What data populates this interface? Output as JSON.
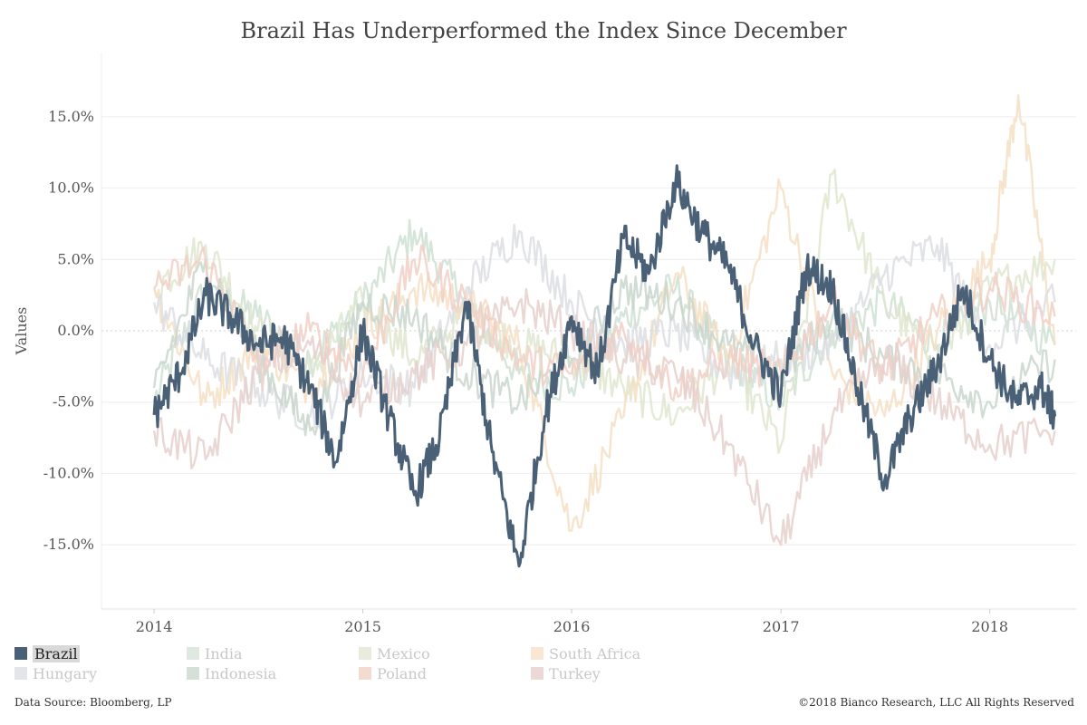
{
  "chart_data": {
    "type": "line",
    "title": "Brazil Has Underperformed the Index Since December",
    "ylabel": "Values",
    "xlabel": "",
    "x_ticks": [
      "2014",
      "2015",
      "2016",
      "2017",
      "2018"
    ],
    "y_ticks": [
      "15.0%",
      "10.0%",
      "5.0%",
      "0.0%",
      "-5.0%",
      "-10.0%",
      "-15.0%"
    ],
    "x_range": [
      "2013-10-01",
      "2018-06-01"
    ],
    "ylim": [
      -19.5,
      19.5
    ],
    "grid": true,
    "legend_position": "bottom-left",
    "highlighted_series": "Brazil",
    "series": [
      {
        "name": "Brazil",
        "color": "#4a6077",
        "x": [
          "2014-01-01",
          "2014-02-15",
          "2014-04-01",
          "2014-05-15",
          "2014-07-01",
          "2014-08-15",
          "2014-10-01",
          "2014-11-15",
          "2015-01-01",
          "2015-02-15",
          "2015-04-01",
          "2015-05-15",
          "2015-07-01",
          "2015-08-15",
          "2015-10-01",
          "2015-11-15",
          "2016-01-01",
          "2016-02-15",
          "2016-04-01",
          "2016-05-15",
          "2016-07-01",
          "2016-08-15",
          "2016-10-01",
          "2016-11-15",
          "2017-01-01",
          "2017-02-15",
          "2017-04-01",
          "2017-05-15",
          "2017-07-01",
          "2017-08-15",
          "2017-10-01",
          "2017-11-15",
          "2018-01-01",
          "2018-02-15",
          "2018-04-01",
          "2018-04-25"
        ],
        "values": [
          -5.9,
          -3.0,
          2.5,
          1.0,
          -1.0,
          -0.5,
          -4.0,
          -9.2,
          0.0,
          -6.0,
          -11.5,
          -7.5,
          2.0,
          -8.5,
          -16.5,
          -6.0,
          1.0,
          -3.0,
          6.5,
          4.0,
          10.5,
          7.0,
          4.5,
          -1.0,
          -4.5,
          4.5,
          3.0,
          -4.0,
          -10.5,
          -6.0,
          -2.5,
          3.0,
          -2.0,
          -5.0,
          -4.0,
          -6.0
        ]
      },
      {
        "name": "India",
        "color": "#cfe0d2",
        "x": [
          "2014-01-01",
          "2014-04-01",
          "2014-07-01",
          "2014-10-01",
          "2015-01-01",
          "2015-04-01",
          "2015-07-01",
          "2015-10-01",
          "2016-01-01",
          "2016-04-01",
          "2016-07-01",
          "2016-10-01",
          "2017-01-01",
          "2017-04-01",
          "2017-07-01",
          "2017-10-01",
          "2018-01-01",
          "2018-04-25"
        ],
        "values": [
          -5.0,
          3.0,
          1.0,
          -2.0,
          2.0,
          7.0,
          2.0,
          -3.0,
          -4.0,
          1.0,
          3.0,
          -2.0,
          -5.0,
          0.0,
          2.0,
          -1.0,
          2.0,
          -1.0
        ]
      },
      {
        "name": "Mexico",
        "color": "#dfe6cf",
        "x": [
          "2014-01-01",
          "2014-04-01",
          "2014-07-01",
          "2014-10-01",
          "2015-01-01",
          "2015-04-01",
          "2015-07-01",
          "2015-10-01",
          "2016-01-01",
          "2016-04-01",
          "2016-07-01",
          "2016-10-01",
          "2017-01-01",
          "2017-04-01",
          "2017-07-01",
          "2017-10-01",
          "2018-01-01",
          "2018-04-25"
        ],
        "values": [
          3.0,
          6.0,
          0.0,
          -3.0,
          2.0,
          -2.0,
          1.0,
          -1.0,
          -2.0,
          -4.0,
          -6.0,
          -2.0,
          -8.0,
          11.0,
          2.0,
          -2.0,
          3.0,
          5.0
        ]
      },
      {
        "name": "South Africa",
        "color": "#f6dfc4",
        "x": [
          "2014-01-01",
          "2014-04-01",
          "2014-07-01",
          "2014-10-01",
          "2015-01-01",
          "2015-04-01",
          "2015-07-01",
          "2015-10-01",
          "2016-01-01",
          "2016-04-01",
          "2016-07-01",
          "2016-10-01",
          "2017-01-01",
          "2017-04-01",
          "2017-07-01",
          "2017-10-01",
          "2018-01-01",
          "2018-02-20",
          "2018-04-25"
        ],
        "values": [
          3.0,
          -5.0,
          -1.0,
          -4.0,
          0.0,
          3.0,
          2.0,
          -1.0,
          -14.0,
          -6.0,
          4.0,
          -2.0,
          10.0,
          -3.0,
          -6.0,
          0.0,
          5.0,
          16.5,
          -1.0
        ]
      },
      {
        "name": "Hungary",
        "color": "#dcdee3",
        "x": [
          "2014-01-01",
          "2014-04-01",
          "2014-07-01",
          "2014-10-01",
          "2015-01-01",
          "2015-04-01",
          "2015-07-01",
          "2015-10-01",
          "2016-01-01",
          "2016-04-01",
          "2016-07-01",
          "2016-10-01",
          "2017-01-01",
          "2017-04-01",
          "2017-07-01",
          "2017-10-01",
          "2018-01-01",
          "2018-04-25"
        ],
        "values": [
          2.0,
          -2.0,
          -4.0,
          -6.0,
          -3.0,
          -4.0,
          3.0,
          7.0,
          2.0,
          -1.0,
          0.0,
          -3.0,
          -2.0,
          -1.0,
          4.0,
          6.0,
          -1.0,
          2.0
        ]
      },
      {
        "name": "Indonesia",
        "color": "#c9d6cc",
        "x": [
          "2014-01-01",
          "2014-04-01",
          "2014-07-01",
          "2014-10-01",
          "2015-01-01",
          "2015-04-01",
          "2015-07-01",
          "2015-10-01",
          "2016-01-01",
          "2016-04-01",
          "2016-07-01",
          "2016-10-01",
          "2017-01-01",
          "2017-04-01",
          "2017-07-01",
          "2017-10-01",
          "2018-01-01",
          "2018-04-25"
        ],
        "values": [
          -4.0,
          5.0,
          -2.0,
          -7.0,
          2.0,
          1.0,
          -3.0,
          -5.0,
          -2.0,
          3.0,
          2.0,
          -1.0,
          -3.0,
          1.0,
          -2.0,
          -3.0,
          -5.0,
          -2.0
        ]
      },
      {
        "name": "Poland",
        "color": "#f1cfc4",
        "x": [
          "2014-01-01",
          "2014-04-01",
          "2014-07-01",
          "2014-10-01",
          "2015-01-01",
          "2015-04-01",
          "2015-07-01",
          "2015-10-01",
          "2016-01-01",
          "2016-04-01",
          "2016-07-01",
          "2016-10-01",
          "2017-01-01",
          "2017-04-01",
          "2017-07-01",
          "2017-10-01",
          "2018-01-01",
          "2018-04-25"
        ],
        "values": [
          3.0,
          5.0,
          -2.0,
          0.0,
          -3.0,
          5.0,
          2.0,
          -2.0,
          -3.0,
          0.0,
          -4.0,
          -2.0,
          -3.0,
          2.0,
          -3.0,
          1.0,
          3.0,
          1.0
        ]
      },
      {
        "name": "Turkey",
        "color": "#e6d0cc",
        "x": [
          "2014-01-01",
          "2014-04-01",
          "2014-07-01",
          "2014-10-01",
          "2015-01-01",
          "2015-04-01",
          "2015-07-01",
          "2015-10-01",
          "2016-01-01",
          "2016-04-01",
          "2016-07-01",
          "2016-10-01",
          "2017-01-01",
          "2017-04-01",
          "2017-07-01",
          "2017-10-01",
          "2018-01-01",
          "2018-04-25"
        ],
        "values": [
          -7.0,
          -9.0,
          -3.0,
          -1.0,
          -5.0,
          -3.0,
          -1.0,
          2.0,
          0.0,
          -2.0,
          -3.0,
          -8.0,
          -15.0,
          -6.0,
          -2.0,
          -5.0,
          -8.0,
          -7.0
        ]
      }
    ]
  },
  "legend": [
    {
      "label": "Brazil",
      "color": "#4a6077",
      "active": true
    },
    {
      "label": "India",
      "color": "#dfe9e1",
      "active": false
    },
    {
      "label": "Mexico",
      "color": "#e8ecdc",
      "active": false
    },
    {
      "label": "South Africa",
      "color": "#f8e7d3",
      "active": false
    },
    {
      "label": "Hungary",
      "color": "#e3e5e9",
      "active": false
    },
    {
      "label": "Indonesia",
      "color": "#d6e0d8",
      "active": false
    },
    {
      "label": "Poland",
      "color": "#f4dbd2",
      "active": false
    },
    {
      "label": "Turkey",
      "color": "#ead9d6",
      "active": false
    }
  ],
  "footer": {
    "source": "Data Source: Bloomberg, LP",
    "copyright": "©2018 Bianco Research, LLC    All Rights Reserved"
  }
}
